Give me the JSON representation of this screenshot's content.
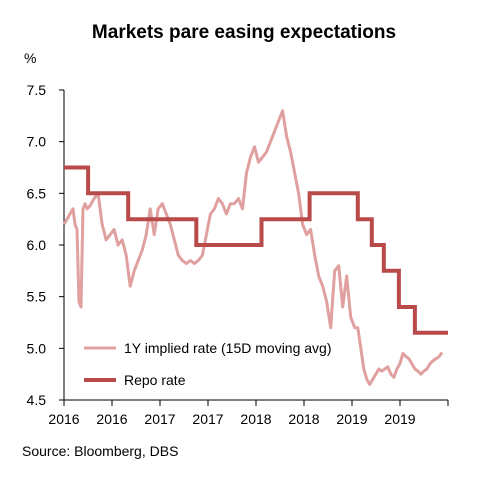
{
  "chart_data": {
    "type": "line",
    "title": "Markets pare easing expectations",
    "ylabel": "%",
    "ylim": [
      4.5,
      7.5
    ],
    "y_ticks": [
      "7.5",
      "7.0",
      "6.5",
      "6.0",
      "5.5",
      "5.0",
      "4.5"
    ],
    "x_ticks": [
      "2016",
      "2016",
      "2017",
      "2017",
      "2018",
      "2018",
      "2019",
      "2019"
    ],
    "xlim": [
      2016.0,
      2019.83
    ],
    "grid": false,
    "legend_position": "bottom-left",
    "source": "Source: Bloomberg, DBS",
    "series": [
      {
        "name": "1Y implied rate (15D moving avg)",
        "color": "#e0a0a0",
        "x": [
          2016.0,
          2016.03,
          2016.06,
          2016.09,
          2016.11,
          2016.13,
          2016.15,
          2016.17,
          2016.19,
          2016.21,
          2016.23,
          2016.26,
          2016.3,
          2016.34,
          2016.38,
          2016.42,
          2016.46,
          2016.5,
          2016.54,
          2016.58,
          2016.62,
          2016.66,
          2016.7,
          2016.74,
          2016.78,
          2016.82,
          2016.86,
          2016.9,
          2016.94,
          2016.98,
          2017.02,
          2017.06,
          2017.1,
          2017.14,
          2017.18,
          2017.22,
          2017.26,
          2017.3,
          2017.34,
          2017.38,
          2017.42,
          2017.46,
          2017.5,
          2017.54,
          2017.58,
          2017.62,
          2017.66,
          2017.7,
          2017.74,
          2017.78,
          2017.82,
          2017.86,
          2017.9,
          2017.94,
          2017.98,
          2018.02,
          2018.06,
          2018.1,
          2018.14,
          2018.18,
          2018.22,
          2018.26,
          2018.3,
          2018.34,
          2018.38,
          2018.42,
          2018.46,
          2018.5,
          2018.54,
          2018.58,
          2018.62,
          2018.66,
          2018.7,
          2018.74,
          2018.78,
          2018.82,
          2018.86,
          2018.9,
          2018.93,
          2018.96,
          2018.99,
          2019.02,
          2019.05,
          2019.08,
          2019.11,
          2019.14,
          2019.17,
          2019.2,
          2019.23,
          2019.26,
          2019.29,
          2019.32,
          2019.35,
          2019.38,
          2019.41,
          2019.44,
          2019.47,
          2019.5,
          2019.53,
          2019.56,
          2019.59,
          2019.62,
          2019.65,
          2019.68,
          2019.71,
          2019.74,
          2019.77
        ],
        "values": [
          6.2,
          6.25,
          6.3,
          6.35,
          6.2,
          6.15,
          5.45,
          5.4,
          6.35,
          6.4,
          6.35,
          6.38,
          6.45,
          6.5,
          6.2,
          6.05,
          6.1,
          6.15,
          6.0,
          6.05,
          5.9,
          5.6,
          5.75,
          5.85,
          5.95,
          6.1,
          6.35,
          6.1,
          6.35,
          6.4,
          6.3,
          6.2,
          6.05,
          5.9,
          5.85,
          5.82,
          5.85,
          5.82,
          5.85,
          5.9,
          6.1,
          6.3,
          6.35,
          6.45,
          6.4,
          6.3,
          6.4,
          6.4,
          6.45,
          6.35,
          6.7,
          6.85,
          6.95,
          6.8,
          6.85,
          6.9,
          7.0,
          7.1,
          7.2,
          7.3,
          7.05,
          6.9,
          6.7,
          6.5,
          6.2,
          6.1,
          6.15,
          5.9,
          5.7,
          5.6,
          5.45,
          5.2,
          5.75,
          5.8,
          5.4,
          5.7,
          5.3,
          5.2,
          5.2,
          5.0,
          4.8,
          4.7,
          4.65,
          4.7,
          4.75,
          4.8,
          4.78,
          4.8,
          4.82,
          4.75,
          4.72,
          4.8,
          4.85,
          4.95,
          4.92,
          4.9,
          4.85,
          4.8,
          4.78,
          4.75,
          4.78,
          4.8,
          4.85,
          4.88,
          4.9,
          4.92,
          4.96
        ]
      },
      {
        "name": "Repo rate",
        "color": "#b84a4a",
        "step": true,
        "x": [
          2016.0,
          2016.24,
          2016.24,
          2016.64,
          2016.64,
          2017.32,
          2017.32,
          2017.97,
          2017.97,
          2018.45,
          2018.45,
          2018.93,
          2018.93,
          2019.07,
          2019.07,
          2019.19,
          2019.19,
          2019.34,
          2019.34,
          2019.5,
          2019.5,
          2019.64,
          2019.64,
          2019.83
        ],
        "values": [
          6.75,
          6.75,
          6.5,
          6.5,
          6.25,
          6.25,
          6.0,
          6.0,
          6.25,
          6.25,
          6.5,
          6.5,
          6.25,
          6.25,
          6.0,
          6.0,
          5.75,
          5.75,
          5.4,
          5.4,
          5.15,
          5.15,
          5.15,
          5.15
        ]
      }
    ]
  }
}
